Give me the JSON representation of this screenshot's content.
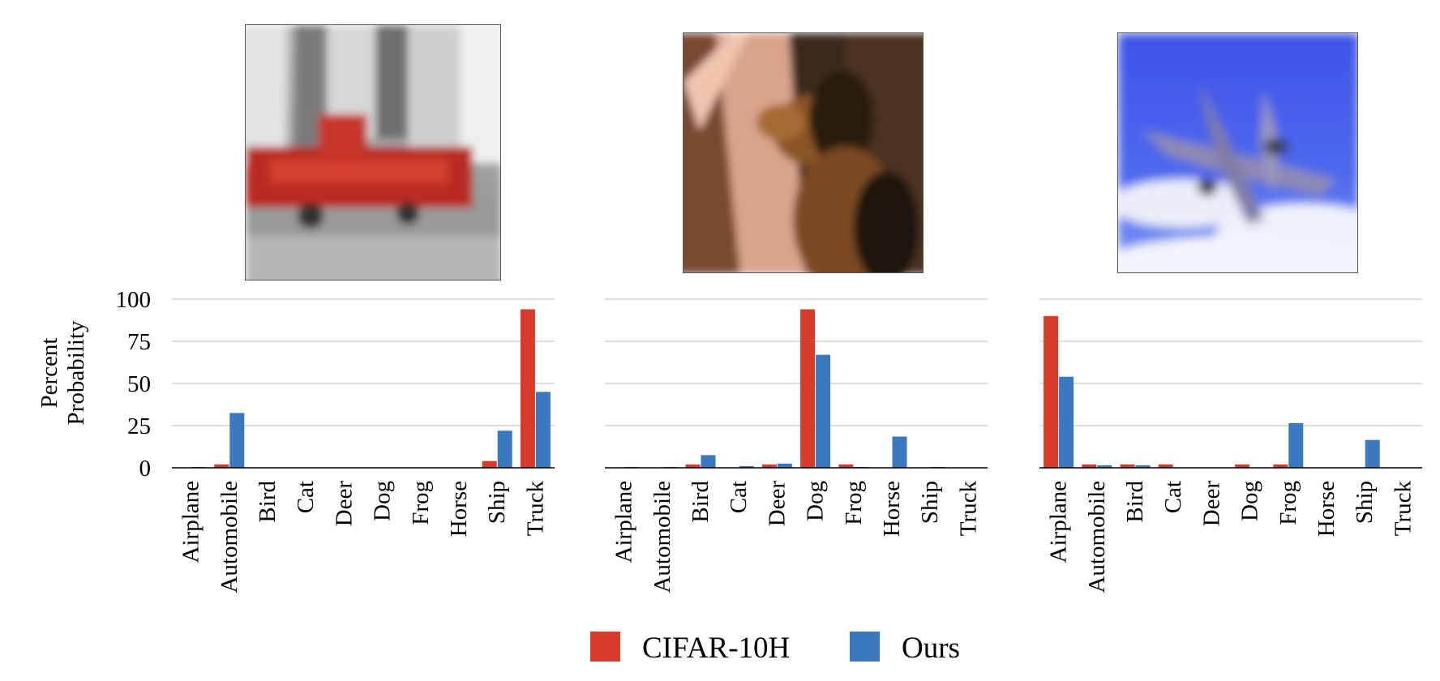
{
  "figure": {
    "ylabel_line1": "Percent",
    "ylabel_line2": "Probability",
    "legend": [
      {
        "name": "CIFAR-10H",
        "color": "#d93b2b"
      },
      {
        "name": "Ours",
        "color": "#3a78bf"
      }
    ]
  },
  "images": [
    {
      "subject": "red fire truck on city street"
    },
    {
      "subject": "dog with human leg"
    },
    {
      "subject": "fighter jet in blue sky"
    }
  ],
  "chart_data": [
    {
      "type": "bar",
      "categories": [
        "Airplane",
        "Automobile",
        "Bird",
        "Cat",
        "Deer",
        "Dog",
        "Frog",
        "Horse",
        "Ship",
        "Truck"
      ],
      "ylim": [
        0,
        100
      ],
      "yticks": [
        0,
        25,
        50,
        75,
        100
      ],
      "ylabel": "Percent Probability",
      "grid": true,
      "series": [
        {
          "name": "CIFAR-10H",
          "values": [
            0,
            2,
            0,
            0,
            0,
            0,
            0,
            0,
            4,
            94
          ]
        },
        {
          "name": "Ours",
          "values": [
            0.5,
            32.5,
            0,
            0,
            0,
            0,
            0,
            0,
            22,
            45
          ]
        }
      ]
    },
    {
      "type": "bar",
      "categories": [
        "Airplane",
        "Automobile",
        "Bird",
        "Cat",
        "Deer",
        "Dog",
        "Frog",
        "Horse",
        "Ship",
        "Truck"
      ],
      "ylim": [
        0,
        100
      ],
      "yticks": [
        0,
        25,
        50,
        75,
        100
      ],
      "grid": true,
      "series": [
        {
          "name": "CIFAR-10H",
          "values": [
            0,
            0,
            2,
            0,
            2,
            94,
            2,
            0,
            0,
            0
          ]
        },
        {
          "name": "Ours",
          "values": [
            0.5,
            0.5,
            7.5,
            1,
            2.5,
            67,
            0.5,
            18.5,
            0.5,
            0
          ]
        }
      ]
    },
    {
      "type": "bar",
      "categories": [
        "Airplane",
        "Automobile",
        "Bird",
        "Cat",
        "Deer",
        "Dog",
        "Frog",
        "Horse",
        "Ship",
        "Truck"
      ],
      "ylim": [
        0,
        100
      ],
      "yticks": [
        0,
        25,
        50,
        75,
        100
      ],
      "grid": true,
      "series": [
        {
          "name": "CIFAR-10H",
          "values": [
            90,
            2,
            2,
            2,
            0,
            2,
            2,
            0,
            0,
            0
          ]
        },
        {
          "name": "Ours",
          "values": [
            54,
            1.5,
            1.5,
            0,
            0,
            0,
            26.5,
            0,
            16.5,
            0
          ]
        }
      ]
    }
  ]
}
